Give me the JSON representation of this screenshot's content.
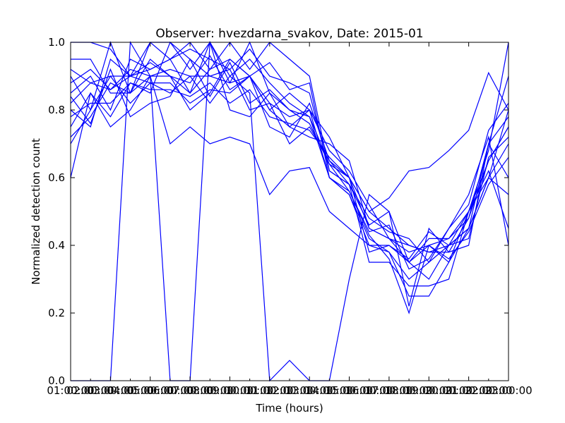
{
  "chart_data": {
    "type": "line",
    "title": "Observer: hvezdarna_svakov, Date: 2015-01",
    "xlabel": "Time (hours)",
    "ylabel": "Normalized detection count",
    "xlim": [
      1,
      23
    ],
    "ylim": [
      0,
      1
    ],
    "grid": false,
    "legend": "none",
    "color": "#0000ff",
    "x_ticks": [
      {
        "value": 1,
        "label": "01:00:00"
      },
      {
        "value": 3,
        "label": "03:00:00"
      },
      {
        "value": 5,
        "label": "05:00:00"
      },
      {
        "value": 7,
        "label": "07:00:00"
      },
      {
        "value": 9,
        "label": "09:00:00"
      },
      {
        "value": 11,
        "label": "11:00:00"
      },
      {
        "value": 13,
        "label": "13:00:00"
      },
      {
        "value": 15,
        "label": "15:00:00"
      },
      {
        "value": 17,
        "label": "17:00:00"
      },
      {
        "value": 19,
        "label": "19:00:00"
      },
      {
        "value": 21,
        "label": "21:00:00"
      },
      {
        "value": 23,
        "label": "23:00:00"
      }
    ],
    "x_minor_labels": [
      {
        "value": 2,
        "label": "02:00:00"
      },
      {
        "value": 4,
        "label": "04:00:00"
      },
      {
        "value": 6,
        "label": "06:00:00"
      },
      {
        "value": 8,
        "label": "08:00:00"
      },
      {
        "value": 10,
        "label": "10:00:00"
      },
      {
        "value": 12,
        "label": "12:00:00"
      },
      {
        "value": 14,
        "label": "14:00:00"
      },
      {
        "value": 16,
        "label": "16:00:00"
      },
      {
        "value": 18,
        "label": "18:00:00"
      },
      {
        "value": 20,
        "label": "20:00:00"
      },
      {
        "value": 22,
        "label": "22:00:00"
      }
    ],
    "y_ticks": [
      {
        "value": 0.0,
        "label": "0.0"
      },
      {
        "value": 0.2,
        "label": "0.2"
      },
      {
        "value": 0.4,
        "label": "0.4"
      },
      {
        "value": 0.6,
        "label": "0.6"
      },
      {
        "value": 0.8,
        "label": "0.8"
      },
      {
        "value": 1.0,
        "label": "1.0"
      }
    ],
    "x": [
      1,
      2,
      3,
      4,
      5,
      6,
      7,
      8,
      9,
      10,
      11,
      12,
      13,
      14,
      15,
      16,
      17,
      18,
      19,
      20,
      21,
      22,
      23
    ],
    "series": [
      {
        "values": [
          0.0,
          0.0,
          0.0,
          1.0,
          0.9,
          0.0,
          0.0,
          1.0,
          0.9,
          0.85,
          0.0,
          0.06,
          0.0,
          0.0,
          0.3,
          0.55,
          0.5,
          0.35,
          0.3,
          0.4,
          0.5,
          0.65,
          0.75
        ]
      },
      {
        "values": [
          0.6,
          0.85,
          0.75,
          0.8,
          0.9,
          0.7,
          0.75,
          0.7,
          0.72,
          0.7,
          0.55,
          0.62,
          0.63,
          0.5,
          0.45,
          0.4,
          0.4,
          0.35,
          0.4,
          0.35,
          0.45,
          0.6,
          0.7
        ]
      },
      {
        "values": [
          0.72,
          0.78,
          0.88,
          0.85,
          0.95,
          0.9,
          0.8,
          0.85,
          0.95,
          0.9,
          0.8,
          0.75,
          0.72,
          0.7,
          0.65,
          0.45,
          0.42,
          0.38,
          0.4,
          0.42,
          0.48,
          0.65,
          0.75
        ]
      },
      {
        "values": [
          0.8,
          0.75,
          0.95,
          0.9,
          0.88,
          0.85,
          0.9,
          0.9,
          0.92,
          0.8,
          0.82,
          0.7,
          0.75,
          0.65,
          0.6,
          0.5,
          0.45,
          0.4,
          0.38,
          0.4,
          0.45,
          0.6,
          0.8
        ]
      },
      {
        "values": [
          0.85,
          0.9,
          0.8,
          0.95,
          0.92,
          0.95,
          0.85,
          0.92,
          0.95,
          0.9,
          0.8,
          0.85,
          0.8,
          0.6,
          0.55,
          0.4,
          0.38,
          0.3,
          0.35,
          0.4,
          0.45,
          0.7,
          0.9
        ]
      },
      {
        "values": [
          0.9,
          0.8,
          0.9,
          0.9,
          1.0,
          0.95,
          0.98,
          0.95,
          0.92,
          0.98,
          0.9,
          0.88,
          0.85,
          0.62,
          0.58,
          0.35,
          0.35,
          0.28,
          0.28,
          0.3,
          0.5,
          0.6,
          0.55
        ]
      },
      {
        "values": [
          0.95,
          0.95,
          0.85,
          0.85,
          1.0,
          1.0,
          0.95,
          0.9,
          0.88,
          1.0,
          0.85,
          0.8,
          0.78,
          0.6,
          0.55,
          0.42,
          0.38,
          0.25,
          0.25,
          0.35,
          0.5,
          0.62,
          0.45
        ]
      },
      {
        "values": [
          0.7,
          0.8,
          1.0,
          0.85,
          0.9,
          0.9,
          0.85,
          1.0,
          0.8,
          0.78,
          0.85,
          0.75,
          0.8,
          0.72,
          0.6,
          0.45,
          0.42,
          0.4,
          0.38,
          0.38,
          0.4,
          0.7,
          0.6
        ]
      },
      {
        "values": [
          0.75,
          0.85,
          0.78,
          0.88,
          0.85,
          1.0,
          0.92,
          1.0,
          0.88,
          0.9,
          0.75,
          0.72,
          0.82,
          0.65,
          0.58,
          0.48,
          0.44,
          0.42,
          0.35,
          0.45,
          0.55,
          0.72,
          0.4
        ]
      },
      {
        "values": [
          0.82,
          0.88,
          0.9,
          0.82,
          0.88,
          0.88,
          0.82,
          0.86,
          0.85,
          0.9,
          0.82,
          0.78,
          0.8,
          0.68,
          0.62,
          0.52,
          0.42,
          0.35,
          0.42,
          0.42,
          0.5,
          0.68,
          1.0
        ]
      },
      {
        "values": [
          0.88,
          0.92,
          0.86,
          0.92,
          0.9,
          0.92,
          0.9,
          0.82,
          0.9,
          0.95,
          0.88,
          0.82,
          0.78,
          0.64,
          0.56,
          0.44,
          0.46,
          0.33,
          0.36,
          0.45,
          0.52,
          0.74,
          0.82
        ]
      },
      {
        "values": [
          0.78,
          0.82,
          0.82,
          0.88,
          0.86,
          0.86,
          0.84,
          0.88,
          0.82,
          0.86,
          0.78,
          0.76,
          0.74,
          0.66,
          0.6,
          0.38,
          0.4,
          0.36,
          0.44,
          0.4,
          0.42,
          0.66,
          0.72
        ]
      },
      {
        "values": [
          1.0,
          1.0,
          0.98,
          0.9,
          0.92,
          0.95,
          1.0,
          0.92,
          1.0,
          0.92,
          1.0,
          0.95,
          0.9,
          0.62,
          0.58,
          0.46,
          0.5,
          0.22,
          0.45,
          0.38,
          0.48,
          0.7,
          0.78
        ]
      },
      {
        "values": [
          0.92,
          0.88,
          0.86,
          0.9,
          0.94,
          0.9,
          0.88,
          0.96,
          0.86,
          0.9,
          0.94,
          0.86,
          0.88,
          0.6,
          0.56,
          0.43,
          0.36,
          0.2,
          0.4,
          0.36,
          0.44,
          0.58,
          0.66
        ]
      },
      {
        "values": [
          0.84,
          0.76,
          0.92,
          0.78,
          0.82,
          0.84,
          0.95,
          0.84,
          0.94,
          0.82,
          0.86,
          0.8,
          0.76,
          0.64,
          0.6,
          0.5,
          0.54,
          0.62,
          0.63,
          0.68,
          0.74,
          0.91,
          0.8
        ]
      }
    ]
  }
}
